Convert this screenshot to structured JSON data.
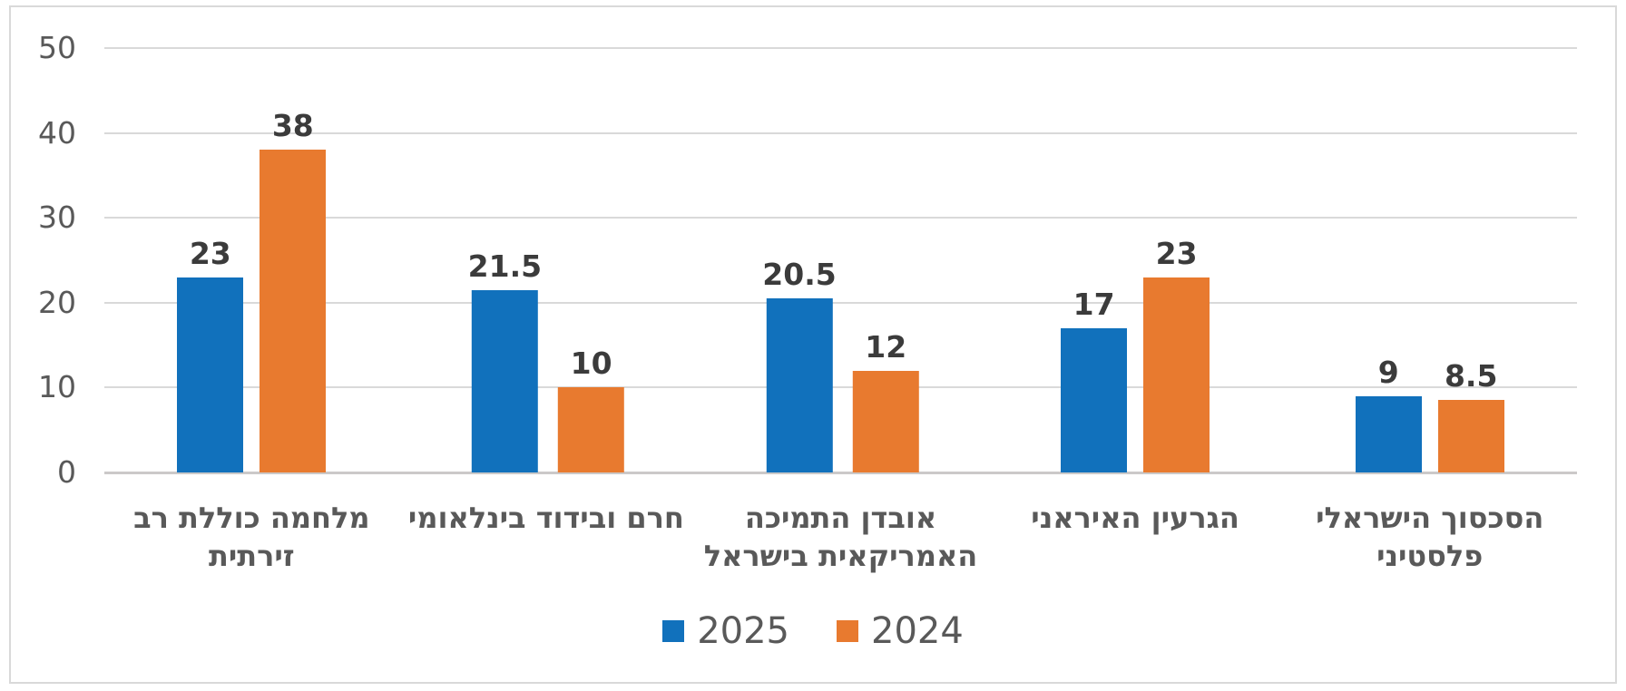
{
  "chart_data": {
    "type": "bar",
    "title": "",
    "rtl": true,
    "categories": [
      "מלחמה כוללת רב זירתית",
      "חרם ובידוד בינלאומי",
      "אובדן התמיכה האמריקאית בישראל",
      "הגרעין האיראני",
      "הסכסוך הישראלי פלסטיני"
    ],
    "category_lines": [
      [
        "מלחמה כוללת רב",
        "זירתית"
      ],
      [
        "חרם ובידוד בינלאומי"
      ],
      [
        "אובדן התמיכה",
        "האמריקאית בישראל"
      ],
      [
        "הגרעין האיראני"
      ],
      [
        "הסכסוך הישראלי",
        "פלסטיני"
      ]
    ],
    "series": [
      {
        "name": "2025",
        "color": "#1171bc",
        "values": [
          23,
          21.5,
          20.5,
          17,
          9
        ],
        "labels": [
          "23",
          "21.5",
          "20.5",
          "17",
          "9"
        ]
      },
      {
        "name": "2024",
        "color": "#e87a2f",
        "values": [
          38,
          10,
          12,
          23,
          8.5
        ],
        "labels": [
          "38",
          "10",
          "12",
          "23",
          "8.5"
        ]
      }
    ],
    "ylim": [
      0,
      50
    ],
    "yticks": [
      "0",
      "10",
      "20",
      "30",
      "40",
      "50"
    ],
    "grid": true,
    "legend_position": "bottom-center",
    "colors": {
      "axis_label": "#595959",
      "data_label": "#3b3b3b",
      "gridline": "#d9d9d9",
      "axis_line": "#cbc9c9",
      "frame_border": "#d9d9d9",
      "background": "#ffffff"
    }
  }
}
